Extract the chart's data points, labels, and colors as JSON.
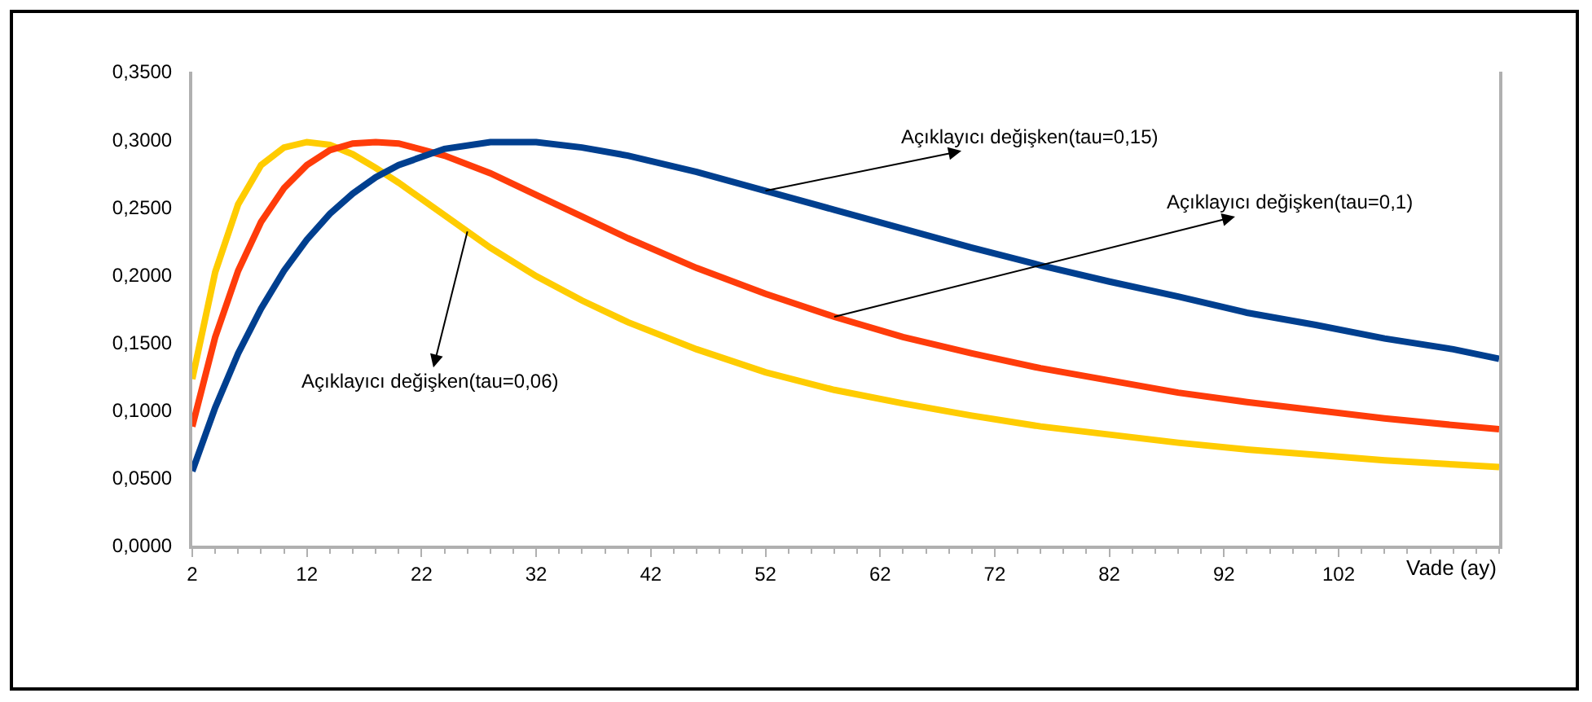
{
  "chart_data": {
    "type": "line",
    "xlabel": "Vade (ay)",
    "x": [
      2,
      4,
      6,
      8,
      10,
      12,
      14,
      16,
      18,
      20,
      24,
      28,
      32,
      36,
      40,
      46,
      52,
      58,
      64,
      70,
      76,
      82,
      88,
      94,
      100,
      106,
      112,
      116
    ],
    "series": [
      {
        "color": "#ffcc00",
        "values": [
          0.123,
          0.202,
          0.252,
          0.281,
          0.294,
          0.298,
          0.296,
          0.289,
          0.279,
          0.268,
          0.244,
          0.22,
          0.199,
          0.181,
          0.165,
          0.145,
          0.128,
          0.115,
          0.105,
          0.096,
          0.088,
          0.082,
          0.076,
          0.071,
          0.067,
          0.063,
          0.06,
          0.058
        ]
      },
      {
        "color": "#ff3c0a",
        "values": [
          0.088,
          0.154,
          0.203,
          0.239,
          0.264,
          0.281,
          0.292,
          0.297,
          0.298,
          0.297,
          0.288,
          0.275,
          0.259,
          0.243,
          0.227,
          0.205,
          0.186,
          0.169,
          0.154,
          0.142,
          0.131,
          0.122,
          0.113,
          0.106,
          0.1,
          0.094,
          0.089,
          0.086
        ]
      },
      {
        "color": "#003f8f",
        "values": [
          0.055,
          0.102,
          0.142,
          0.175,
          0.203,
          0.226,
          0.245,
          0.26,
          0.272,
          0.281,
          0.293,
          0.298,
          0.298,
          0.294,
          0.288,
          0.276,
          0.262,
          0.248,
          0.234,
          0.22,
          0.207,
          0.195,
          0.184,
          0.172,
          0.163,
          0.153,
          0.145,
          0.138
        ]
      }
    ],
    "xlim": [
      2,
      116
    ],
    "xticks": [
      2,
      12,
      22,
      32,
      42,
      52,
      62,
      72,
      82,
      92,
      102
    ],
    "ylim": [
      0,
      0.35
    ],
    "yticks": [
      {
        "value": 0,
        "label": "0,0000"
      },
      {
        "value": 0.05,
        "label": "0,0500"
      },
      {
        "value": 0.1,
        "label": "0,1000"
      },
      {
        "value": 0.15,
        "label": "0,1500"
      },
      {
        "value": 0.2,
        "label": "0,2000"
      },
      {
        "value": 0.25,
        "label": "0,2500"
      },
      {
        "value": 0.3,
        "label": "0,3000"
      },
      {
        "value": 0.35,
        "label": "0,3500"
      }
    ],
    "annotations": [
      {
        "text": "Açıklayıcı değişken(tau=0,15)",
        "x": 52,
        "y": 0.262
      },
      {
        "text": "Açıklayıcı değişken(tau=0,1)",
        "x": 58,
        "y": 0.169
      },
      {
        "text": "Açıklayıcı değişken(tau=0,06)",
        "x": 26,
        "y": 0.232
      }
    ],
    "grid": false,
    "marker": "none",
    "line_style": "solid"
  }
}
